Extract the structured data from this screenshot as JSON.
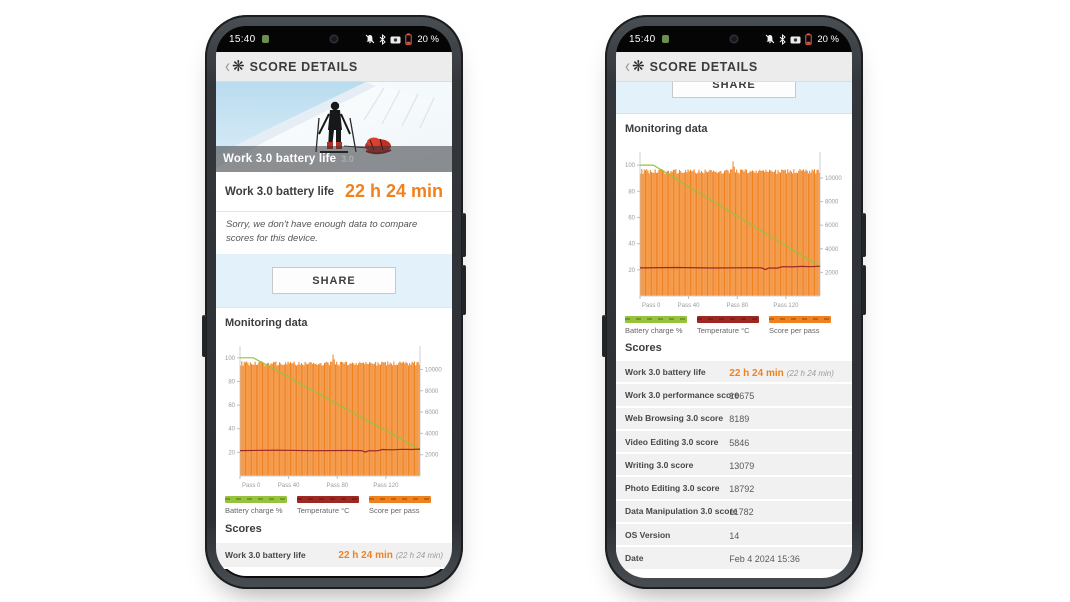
{
  "colors": {
    "accent_orange": "#f0811f",
    "battery_green": "#96c23c",
    "temperature_maroon": "#9e2822",
    "share_section_blue": "#e3f1fa",
    "appbar_gray": "#ececec",
    "row_gray": "#f1f1f1",
    "statusbar_black": "#050505"
  },
  "status_bar": {
    "time": "15:40",
    "battery_text": "20 %",
    "icons": [
      {
        "name": "notification-icon"
      },
      {
        "name": "camera-punch-hole"
      },
      {
        "name": "bell-off-icon"
      },
      {
        "name": "bluetooth-icon"
      },
      {
        "name": "camera-icon"
      },
      {
        "name": "battery-icon"
      }
    ]
  },
  "app_bar": {
    "back_glyph": "‹",
    "logo_glyph": "❋",
    "title": "SCORE DETAILS"
  },
  "hero": {
    "title": "Work 3.0 battery life",
    "ghost": "3.0"
  },
  "result": {
    "label": "Work 3.0 battery life",
    "value": "22 h 24 min"
  },
  "notice_text": "Sorry, we don't have enough data to compare scores for this device.",
  "share": {
    "label": "SHARE"
  },
  "sections": {
    "monitoring": "Monitoring data",
    "scores": "Scores"
  },
  "chart_data": {
    "type": "bar",
    "title": "Monitoring data",
    "x_tick_labels": [
      "Pass 0",
      "Pass 40",
      "Pass 80",
      "Pass 120"
    ],
    "x_tick_passes": [
      0,
      40,
      80,
      120
    ],
    "total_passes": 148,
    "grid": false,
    "legend_position": "bottom",
    "left_axis": {
      "ticks": [
        100,
        80,
        60,
        40,
        20
      ],
      "range": [
        0,
        110
      ]
    },
    "right_axis": {
      "ticks": [
        10000,
        8000,
        6000,
        4000,
        2000
      ],
      "range": [
        0,
        12200
      ]
    },
    "series": [
      {
        "name": "Battery charge %",
        "kind": "line",
        "axis": "left",
        "color": "#96c23c",
        "points": [
          [
            0,
            100
          ],
          [
            11,
            100
          ],
          [
            148,
            22.5
          ]
        ]
      },
      {
        "name": "Temperature °C",
        "kind": "line",
        "axis": "left",
        "color": "#9e2822",
        "points": [
          [
            0,
            21.5
          ],
          [
            30,
            21.8
          ],
          [
            60,
            21.4
          ],
          [
            90,
            21.6
          ],
          [
            100,
            21.5
          ],
          [
            103,
            20.2
          ],
          [
            106,
            21.4
          ],
          [
            113,
            21.3
          ],
          [
            117,
            22.4
          ],
          [
            125,
            22.2
          ],
          [
            133,
            22.6
          ],
          [
            141,
            22.4
          ],
          [
            148,
            22.8
          ]
        ]
      },
      {
        "name": "Score per pass",
        "kind": "bar",
        "axis": "right",
        "color": "#f0811f",
        "baseline": 10350,
        "noise": 420,
        "spike_pass": 76,
        "spike_value": 11400
      }
    ],
    "legend": [
      {
        "label": "Battery charge %",
        "color": "#96c23c"
      },
      {
        "label": "Temperature °C",
        "color": "#9e2822"
      },
      {
        "label": "Score per pass",
        "color": "#f0811f"
      }
    ]
  },
  "scores_table": {
    "rows": [
      {
        "label": "Work 3.0 battery life",
        "value": "22 h 24 min",
        "extra": "(22 h 24 min)",
        "accent": true
      },
      {
        "label": "Work 3.0 performance score",
        "value": "10675"
      },
      {
        "label": "Web Browsing 3.0 score",
        "value": "8189"
      },
      {
        "label": "Video Editing 3.0 score",
        "value": "5846"
      },
      {
        "label": "Writing 3.0 score",
        "value": "13079"
      },
      {
        "label": "Photo Editing 3.0 score",
        "value": "18792"
      },
      {
        "label": "Data Manipulation 3.0 score",
        "value": "11782"
      },
      {
        "label": "OS Version",
        "value": "14"
      },
      {
        "label": "Date",
        "value": "Feb 4 2024 15:36"
      }
    ]
  }
}
